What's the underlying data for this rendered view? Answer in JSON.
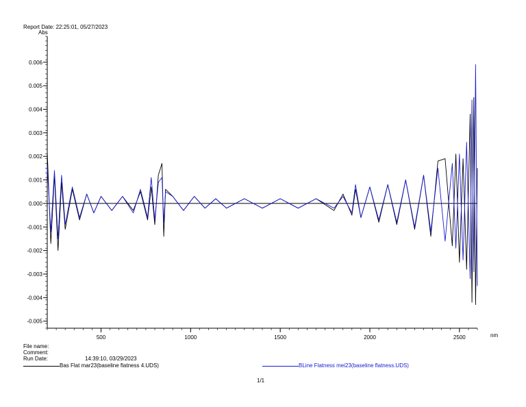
{
  "report_date": "Report Date: 22:25:01, 05/27/2023",
  "footer": {
    "file_name_label": "File name:",
    "comment_label": "Comment:",
    "run_date_label": "Run Date:",
    "run_date_value": "14:39:10, 03/29/2023",
    "page": "1/1"
  },
  "colors": {
    "series1": "#000000",
    "series2": "#1a1ad0",
    "axis": "#000000"
  },
  "chart_data": {
    "type": "line",
    "xlabel": "nm",
    "ylabel": "Abs",
    "xlim": [
      200,
      2600
    ],
    "ylim": [
      -0.0053,
      0.0071
    ],
    "xticks": [
      500,
      1000,
      1500,
      2000,
      2500
    ],
    "yticks": [
      -0.005,
      -0.004,
      -0.003,
      -0.002,
      -0.001,
      0.0,
      0.001,
      0.002,
      0.003,
      0.004,
      0.005,
      0.006
    ],
    "ytick_labels": [
      "-0.005",
      "-0.004",
      "-0.003",
      "-0.002",
      "-0.001",
      "0.000",
      "0.001",
      "0.002",
      "0.003",
      "0.004",
      "0.005",
      "0.006"
    ],
    "xtick_labels": [
      "500",
      "1000",
      "1500",
      "2000",
      "2500"
    ],
    "grid": false,
    "legend_position": "bottom",
    "series": [
      {
        "name": "Bas Flat mar23(baseline flatness 4.UDS)",
        "x": [
          200,
          220,
          240,
          260,
          280,
          300,
          340,
          380,
          420,
          460,
          500,
          560,
          620,
          680,
          720,
          760,
          780,
          800,
          820,
          840,
          850,
          860,
          900,
          960,
          1020,
          1080,
          1140,
          1200,
          1300,
          1400,
          1500,
          1600,
          1700,
          1800,
          1850,
          1900,
          1920,
          1950,
          2000,
          2050,
          2100,
          2150,
          2200,
          2250,
          2300,
          2340,
          2380,
          2420,
          2460,
          2480,
          2500,
          2520,
          2540,
          2560,
          2570,
          2580,
          2590,
          2600
        ],
        "y": [
          0.0022,
          -0.0017,
          0.0012,
          -0.002,
          0.0009,
          -0.0011,
          0.0006,
          -0.0007,
          0.0004,
          -0.0004,
          0.0003,
          -0.0003,
          0.0003,
          -0.0003,
          0.0005,
          -0.0007,
          0.0007,
          -0.0009,
          0.0012,
          0.0017,
          -0.0014,
          0.0006,
          0.0003,
          -0.0003,
          0.0003,
          -0.0002,
          0.0002,
          -0.0002,
          0.0002,
          -0.0002,
          0.0002,
          -0.0002,
          0.0002,
          -0.0003,
          0.0004,
          -0.0005,
          0.0006,
          -0.0006,
          0.0007,
          -0.0008,
          0.0008,
          -0.0009,
          0.001,
          -0.0011,
          0.0012,
          -0.0014,
          0.0018,
          0.0019,
          -0.0018,
          0.0021,
          -0.0025,
          0.0019,
          -0.0028,
          0.0038,
          -0.0042,
          0.0045,
          -0.0043,
          0.0015
        ]
      },
      {
        "name": "BLine Flatness mei23(baseline flatness.UDS)",
        "x": [
          200,
          220,
          240,
          260,
          280,
          300,
          340,
          380,
          420,
          460,
          500,
          560,
          620,
          680,
          720,
          760,
          780,
          800,
          820,
          840,
          850,
          860,
          900,
          960,
          1020,
          1080,
          1140,
          1200,
          1300,
          1400,
          1500,
          1600,
          1700,
          1800,
          1850,
          1900,
          1920,
          1950,
          2000,
          2050,
          2100,
          2150,
          2200,
          2250,
          2300,
          2340,
          2380,
          2420,
          2460,
          2480,
          2500,
          2520,
          2540,
          2560,
          2570,
          2580,
          2590,
          2600
        ],
        "y": [
          0.0016,
          -0.0012,
          0.0014,
          -0.0015,
          0.0012,
          -0.0009,
          0.0007,
          -0.0006,
          0.0004,
          -0.0004,
          0.0003,
          -0.0003,
          0.0003,
          -0.0004,
          0.0006,
          -0.0006,
          0.0011,
          -0.0007,
          0.0009,
          0.0011,
          -0.0008,
          0.0005,
          0.0003,
          -0.0003,
          0.0003,
          -0.0002,
          0.0002,
          -0.0002,
          0.0002,
          -0.0002,
          0.0002,
          -0.0002,
          0.0002,
          -0.0002,
          0.0003,
          -0.0004,
          0.0008,
          -0.0006,
          0.0007,
          -0.0007,
          0.0008,
          -0.0008,
          0.001,
          -0.001,
          0.0012,
          -0.0012,
          0.0015,
          -0.0016,
          0.0017,
          -0.0019,
          0.0021,
          -0.0024,
          0.0026,
          -0.0032,
          0.0044,
          -0.0029,
          0.0059,
          -0.0035
        ]
      }
    ]
  }
}
